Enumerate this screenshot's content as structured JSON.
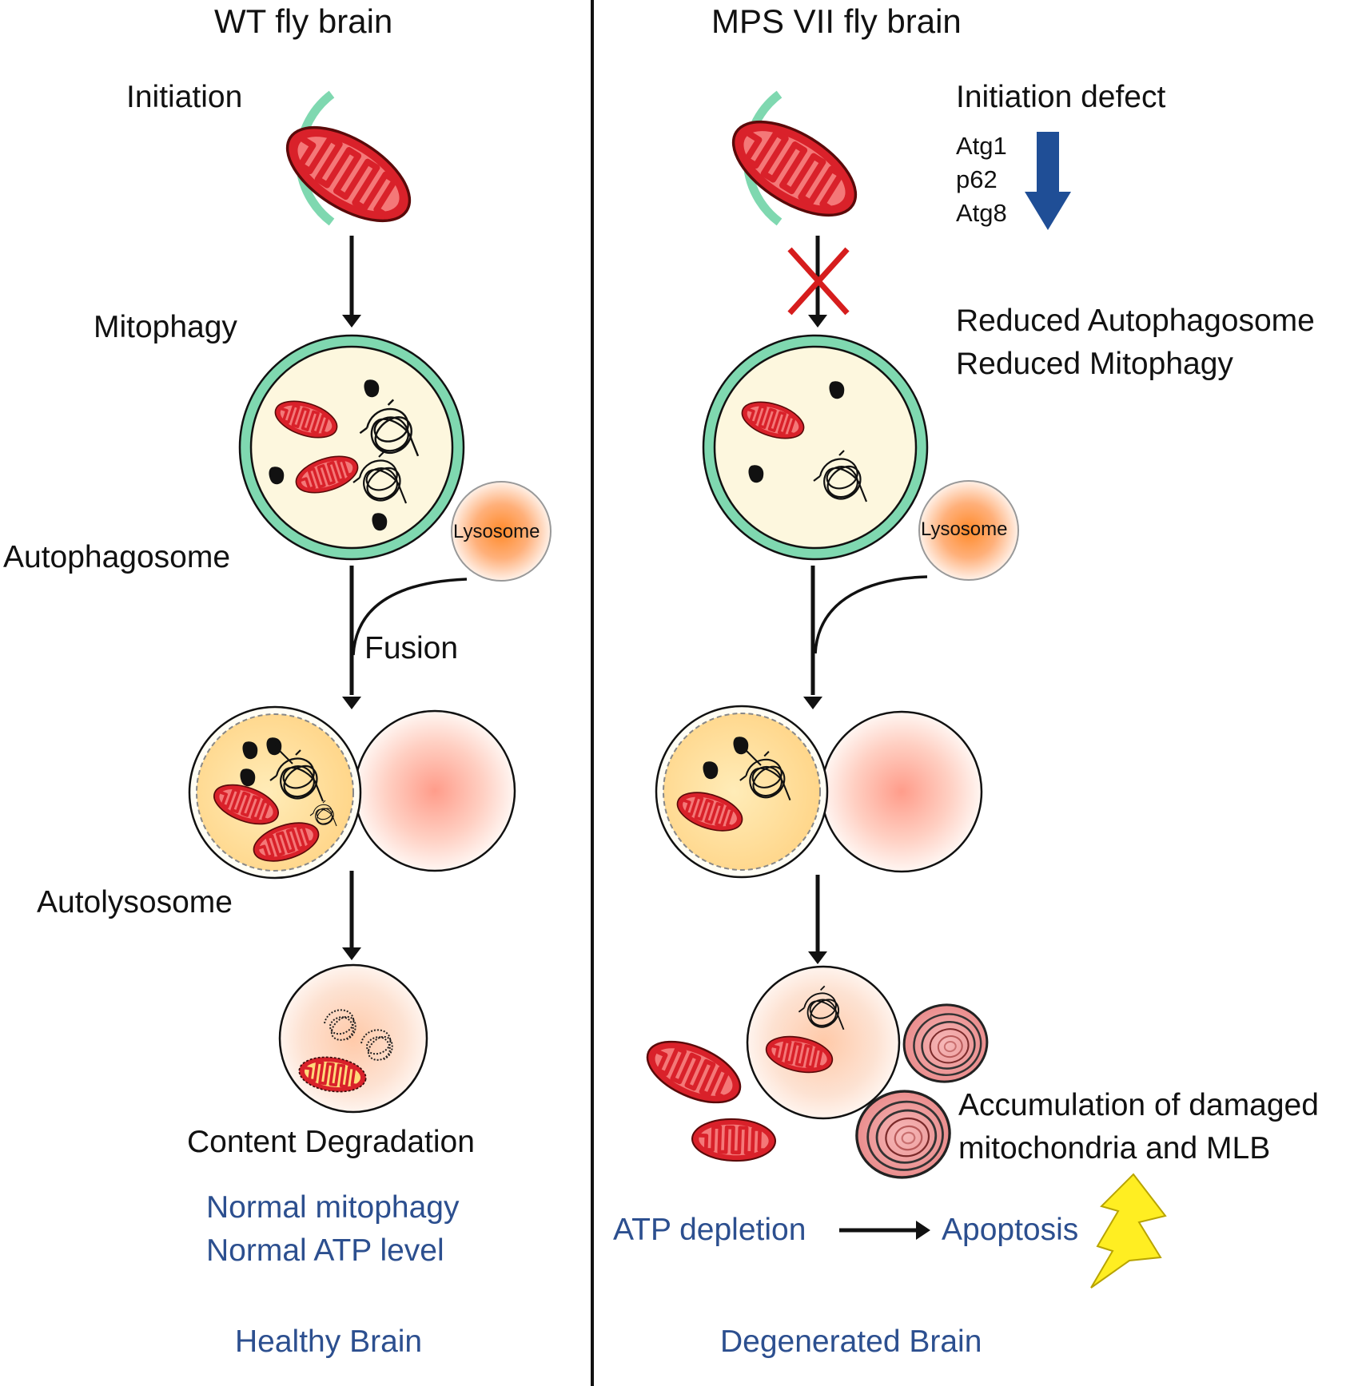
{
  "left_panel": {
    "title": "WT fly brain",
    "steps": {
      "initiation": "Initiation",
      "mitophagy": "Mitophagy",
      "autophagosome": "Autophagosome",
      "fusion": "Fusion",
      "autolysosome": "Autolysosome",
      "content_degradation": "Content Degradation"
    },
    "lysosome_label": "Lysosome",
    "outcomes": [
      "Normal mitophagy",
      "Normal ATP level"
    ],
    "conclusion": "Healthy Brain"
  },
  "right_panel": {
    "title": "MPS VII fly brain",
    "initiation_defect": "Initiation defect",
    "downregulated_genes": [
      "Atg1",
      "p62",
      "Atg8"
    ],
    "reduced": [
      "Reduced Autophagosome",
      "Reduced Mitophagy"
    ],
    "lysosome_label": "Lysosome",
    "accumulation": [
      "Accumulation of damaged",
      "mitochondria and MLB"
    ],
    "atp_depletion": "ATP depletion",
    "apoptosis": "Apoptosis",
    "conclusion": "Degenerated Brain"
  },
  "colors": {
    "text_blue": "#2c4f8f",
    "arrow_blue": "#1f4e96",
    "membrane_green": "#7fd8b0",
    "mito_red": "#d9212a",
    "block_red": "#d61d1d",
    "lightning_yellow": "#ffee22"
  }
}
